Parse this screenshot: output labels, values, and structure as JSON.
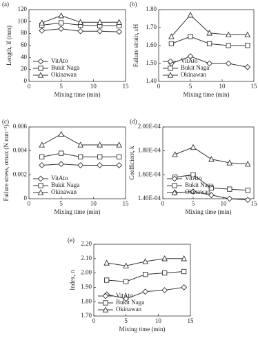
{
  "chart_data": [
    {
      "type": "line",
      "title": "(a)",
      "ylabel": "Length, lf (mm)",
      "xlabel": "Mixing time (min)",
      "legend": "lower left",
      "x": [
        2,
        5,
        8,
        11,
        14
      ],
      "xlim": [
        0,
        15
      ],
      "xticks": [
        0,
        5,
        10,
        15
      ],
      "ylim": [
        0,
        120
      ],
      "yticks": [
        0,
        20,
        40,
        60,
        80,
        100,
        120
      ],
      "series": [
        {
          "name": "VitAto",
          "marker": "diamond",
          "color": "#333333",
          "values": [
            85,
            88,
            84,
            84,
            83
          ]
        },
        {
          "name": "Bukit Naga",
          "marker": "square",
          "color": "#333333",
          "values": [
            94,
            98,
            94,
            93,
            93
          ]
        },
        {
          "name": "Okinawan",
          "marker": "triangle",
          "color": "#333333",
          "values": [
            98,
            110,
            99,
            99,
            99
          ]
        }
      ]
    },
    {
      "type": "line",
      "title": "(b)",
      "ylabel": "Failure strain, εH",
      "xlabel": "Mixing time (min)",
      "legend": "lower left",
      "x": [
        2,
        5,
        8,
        11,
        14
      ],
      "xlim": [
        0,
        15
      ],
      "xticks": [
        0,
        5,
        10,
        15
      ],
      "ylim": [
        1.4,
        1.8
      ],
      "yticks": [
        {
          "value": 1.4,
          "label": "1.40"
        },
        {
          "value": 1.5,
          "label": "1.50"
        },
        {
          "value": 1.6,
          "label": "1.60"
        },
        {
          "value": 1.7,
          "label": "1.70"
        },
        {
          "value": 1.8,
          "label": "1.80"
        }
      ],
      "series": [
        {
          "name": "VitAto",
          "marker": "diamond",
          "color": "#333333",
          "values": [
            1.5,
            1.54,
            1.5,
            1.5,
            1.48
          ]
        },
        {
          "name": "Bukit Naga",
          "marker": "square",
          "color": "#333333",
          "values": [
            1.61,
            1.65,
            1.61,
            1.6,
            1.6
          ]
        },
        {
          "name": "Okinawan",
          "marker": "triangle",
          "color": "#333333",
          "values": [
            1.65,
            1.77,
            1.67,
            1.66,
            1.66
          ]
        }
      ]
    },
    {
      "type": "line",
      "title": "(c)",
      "ylabel": "Failure stress, σmax (N mm⁻²)",
      "xlabel": "Mixing time (min)",
      "legend": "lower left",
      "x": [
        2,
        5,
        8,
        11,
        14
      ],
      "xlim": [
        0,
        15
      ],
      "xticks": [
        0,
        5,
        10,
        15
      ],
      "ylim": [
        0,
        0.006
      ],
      "yticks": [
        0,
        0.002,
        0.004,
        0.006
      ],
      "series": [
        {
          "name": "VitAto",
          "marker": "diamond",
          "color": "#333333",
          "values": [
            0.0028,
            0.0029,
            0.0028,
            0.0028,
            0.0028
          ]
        },
        {
          "name": "Bukit Naga",
          "marker": "square",
          "color": "#333333",
          "values": [
            0.0035,
            0.0038,
            0.0035,
            0.0035,
            0.0035
          ]
        },
        {
          "name": "Okinawan",
          "marker": "triangle",
          "color": "#333333",
          "values": [
            0.0045,
            0.0054,
            0.0045,
            0.0045,
            0.0045
          ]
        }
      ]
    },
    {
      "type": "line",
      "title": "(d)",
      "ylabel": "Coefficient, k",
      "xlabel": "Mixing time (min)",
      "legend": "lower left",
      "x": [
        2,
        5,
        8,
        11,
        14
      ],
      "xlim": [
        0,
        15
      ],
      "xticks": [
        0,
        5,
        10,
        15
      ],
      "ylim": [
        0.00014,
        0.0002
      ],
      "yticks": [
        {
          "value": 0.00014,
          "label": "1.40E-04"
        },
        {
          "value": 0.00016,
          "label": "1.60E-04"
        },
        {
          "value": 0.00018,
          "label": "1.80E-04"
        },
        {
          "value": 0.0002,
          "label": "2.00E-04"
        }
      ],
      "series": [
        {
          "name": "VitAto",
          "marker": "diamond",
          "color": "#333333",
          "values": [
            0.000145,
            0.000146,
            0.000143,
            0.00014,
            0.000139
          ]
        },
        {
          "name": "Bukit Naga",
          "marker": "square",
          "color": "#333333",
          "values": [
            0.000158,
            0.00016,
            0.000149,
            0.000148,
            0.000147
          ]
        },
        {
          "name": "Okinawan",
          "marker": "triangle",
          "color": "#333333",
          "values": [
            0.000177,
            0.000183,
            0.000173,
            0.00017,
            0.000169
          ]
        }
      ]
    },
    {
      "type": "line",
      "title": "(e)",
      "ylabel": "Index, n",
      "xlabel": "Mixing time (min)",
      "legend": "lower left",
      "x": [
        2,
        5,
        8,
        11,
        14
      ],
      "xlim": [
        0,
        15
      ],
      "xticks": [
        0,
        5,
        10,
        15
      ],
      "ylim": [
        1.7,
        2.2
      ],
      "yticks": [
        {
          "value": 1.7,
          "label": "1.70"
        },
        {
          "value": 1.8,
          "label": "1.80"
        },
        {
          "value": 1.9,
          "label": "1.90"
        },
        {
          "value": 2.0,
          "label": "2.00"
        },
        {
          "value": 2.1,
          "label": "2.10"
        },
        {
          "value": 2.2,
          "label": "2.20"
        }
      ],
      "series": [
        {
          "name": "VitAto",
          "marker": "diamond",
          "color": "#333333",
          "values": [
            1.85,
            1.82,
            1.87,
            1.88,
            1.9
          ]
        },
        {
          "name": "Bukit Naga",
          "marker": "square",
          "color": "#333333",
          "values": [
            1.95,
            1.94,
            1.99,
            2.0,
            2.01
          ]
        },
        {
          "name": "Okinawan",
          "marker": "triangle",
          "color": "#333333",
          "values": [
            2.07,
            2.05,
            2.08,
            2.1,
            2.1
          ]
        }
      ]
    }
  ]
}
